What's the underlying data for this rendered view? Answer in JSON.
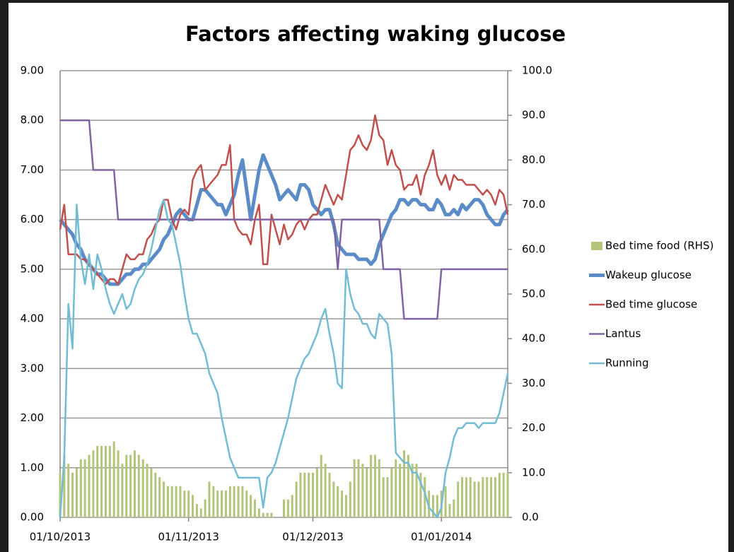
{
  "chart_data": {
    "type": "line",
    "title": "Factors affecting waking glucose",
    "categories": [
      "01/10/2013",
      null,
      null,
      null,
      null,
      null,
      null,
      null,
      null,
      null,
      null,
      null,
      null,
      null,
      null,
      null,
      null,
      null,
      null,
      null,
      null,
      null,
      null,
      null,
      null,
      null,
      null,
      null,
      null,
      null,
      null,
      "01/11/2013",
      null,
      null,
      null,
      null,
      null,
      null,
      null,
      null,
      null,
      null,
      null,
      null,
      null,
      null,
      null,
      null,
      null,
      null,
      null,
      null,
      null,
      null,
      null,
      null,
      null,
      null,
      null,
      null,
      null,
      "01/12/2013",
      null,
      null,
      null,
      null,
      null,
      null,
      null,
      null,
      null,
      null,
      null,
      null,
      null,
      null,
      null,
      null,
      null,
      null,
      null,
      null,
      null,
      null,
      null,
      null,
      null,
      null,
      null,
      null,
      null,
      null,
      "01/01/2014",
      null,
      null,
      null,
      null,
      null,
      null,
      null,
      null,
      null,
      null,
      null,
      null,
      null,
      null,
      null,
      null
    ],
    "ylim": [
      0,
      9
    ],
    "yticks": [
      {
        "value": 0,
        "label": "0.00"
      },
      {
        "value": 1,
        "label": "1.00"
      },
      {
        "value": 2,
        "label": "2.00"
      },
      {
        "value": 3,
        "label": "3.00"
      },
      {
        "value": 4,
        "label": "4.00"
      },
      {
        "value": 5,
        "label": "5.00"
      },
      {
        "value": 6,
        "label": "6.00"
      },
      {
        "value": 7,
        "label": "7.00"
      },
      {
        "value": 8,
        "label": "8.00"
      },
      {
        "value": 9,
        "label": "9.00"
      }
    ],
    "y2lim": [
      0,
      100
    ],
    "y2ticks": [
      {
        "value": 0,
        "label": "0.0"
      },
      {
        "value": 10,
        "label": "10.0"
      },
      {
        "value": 20,
        "label": "20.0"
      },
      {
        "value": 30,
        "label": "30.0"
      },
      {
        "value": 40,
        "label": "40.0"
      },
      {
        "value": 50,
        "label": "50.0"
      },
      {
        "value": 60,
        "label": "60.0"
      },
      {
        "value": 70,
        "label": "70.0"
      },
      {
        "value": 80,
        "label": "80.0"
      },
      {
        "value": 90,
        "label": "90.0"
      },
      {
        "value": 100,
        "label": "100.0"
      }
    ],
    "grid": true,
    "legend": "right",
    "series": [
      {
        "name": "Bed time food (RHS)",
        "type": "bar",
        "axis": "y2",
        "color": "#b3c57a",
        "values": [
          10,
          14,
          12,
          10,
          11,
          13,
          13,
          14,
          15,
          16,
          16,
          16,
          16,
          17,
          15,
          12,
          14,
          14,
          15,
          14,
          13,
          12,
          11,
          10,
          9,
          8,
          7,
          7,
          7,
          7,
          6,
          6,
          5,
          3,
          2,
          4,
          8,
          7,
          6,
          6,
          6,
          7,
          7,
          7,
          7,
          6,
          5,
          4,
          2,
          1,
          1,
          1,
          0,
          0,
          4,
          4,
          5,
          8,
          10,
          10,
          10,
          10,
          11,
          14,
          12,
          10,
          8,
          7,
          6,
          5,
          8,
          13,
          13,
          12,
          11,
          14,
          14,
          13,
          9,
          9,
          11,
          13,
          12,
          15,
          14,
          12,
          12,
          10,
          9,
          6,
          5,
          5,
          6,
          7,
          3,
          4,
          8,
          9,
          9,
          9,
          8,
          8,
          9,
          9,
          9,
          9,
          10,
          10,
          10
        ]
      },
      {
        "name": "Wakeup glucose",
        "color": "#5b8cc8",
        "values": [
          6.0,
          5.9,
          5.8,
          5.7,
          5.5,
          5.4,
          5.2,
          5.1,
          5.0,
          4.9,
          4.9,
          4.8,
          4.7,
          4.7,
          4.7,
          4.8,
          4.9,
          4.9,
          5.0,
          5.0,
          5.1,
          5.1,
          5.2,
          5.3,
          5.4,
          5.6,
          5.7,
          5.9,
          6.1,
          6.2,
          6.1,
          6.0,
          6.0,
          6.3,
          6.6,
          6.6,
          6.5,
          6.4,
          6.3,
          6.3,
          6.1,
          6.3,
          6.5,
          6.9,
          7.2,
          6.6,
          6.0,
          6.5,
          7.0,
          7.3,
          7.1,
          6.9,
          6.7,
          6.4,
          6.5,
          6.6,
          6.5,
          6.4,
          6.7,
          6.7,
          6.6,
          6.3,
          6.2,
          6.1,
          6.2,
          6.2,
          5.9,
          5.5,
          5.4,
          5.3,
          5.3,
          5.3,
          5.2,
          5.2,
          5.2,
          5.1,
          5.2,
          5.5,
          5.7,
          5.9,
          6.1,
          6.2,
          6.4,
          6.4,
          6.3,
          6.4,
          6.4,
          6.3,
          6.3,
          6.2,
          6.2,
          6.4,
          6.3,
          6.1,
          6.1,
          6.2,
          6.1,
          6.3,
          6.2,
          6.3,
          6.4,
          6.4,
          6.3,
          6.1,
          6.0,
          5.9,
          5.9,
          6.1,
          6.2
        ]
      },
      {
        "name": "Bed time glucose",
        "color": "#c0504d",
        "values": [
          5.8,
          6.3,
          5.3,
          5.3,
          5.3,
          5.2,
          5.2,
          5.1,
          5.0,
          4.9,
          4.8,
          4.7,
          4.8,
          4.8,
          4.7,
          5.0,
          5.3,
          5.2,
          5.2,
          5.3,
          5.3,
          5.6,
          5.7,
          5.9,
          6.0,
          6.4,
          6.4,
          6.0,
          5.8,
          6.1,
          6.2,
          6.1,
          6.8,
          7.0,
          7.1,
          6.6,
          6.7,
          6.8,
          6.9,
          7.1,
          7.1,
          7.5,
          6.0,
          5.8,
          5.7,
          5.7,
          5.5,
          6.0,
          6.3,
          5.1,
          5.1,
          6.1,
          5.8,
          5.5,
          5.9,
          5.6,
          5.7,
          5.9,
          6.0,
          5.8,
          6.0,
          6.1,
          6.1,
          6.4,
          6.7,
          6.5,
          6.3,
          6.5,
          6.4,
          6.9,
          7.4,
          7.5,
          7.7,
          7.5,
          7.4,
          7.6,
          8.1,
          7.7,
          7.6,
          7.1,
          7.4,
          7.1,
          7.0,
          6.6,
          6.7,
          6.7,
          6.9,
          6.5,
          6.9,
          7.1,
          7.4,
          6.9,
          6.7,
          6.9,
          6.6,
          6.9,
          6.8,
          6.8,
          6.7,
          6.7,
          6.7,
          6.6,
          6.5,
          6.6,
          6.5,
          6.3,
          6.6,
          6.5,
          6.1
        ]
      },
      {
        "name": "Lantus",
        "color": "#8064a2",
        "values": [
          8,
          8,
          8,
          8,
          8,
          8,
          8,
          8,
          7,
          7,
          7,
          7,
          7,
          7,
          6,
          6,
          6,
          6,
          6,
          6,
          6,
          6,
          6,
          6,
          6,
          6,
          6,
          6,
          6,
          6,
          6,
          6,
          6,
          6,
          6,
          6,
          6,
          6,
          6,
          6,
          6,
          6,
          6,
          6,
          6,
          6,
          6,
          6,
          6,
          6,
          6,
          6,
          6,
          6,
          6,
          6,
          6,
          6,
          6,
          6,
          6,
          6,
          6,
          6,
          6,
          6,
          6,
          5,
          6,
          6,
          6,
          6,
          6,
          6,
          6,
          6,
          6,
          6,
          5,
          5,
          5,
          5,
          5,
          4,
          4,
          4,
          4,
          4,
          4,
          4,
          4,
          4,
          5,
          5,
          5,
          5,
          5,
          5,
          5,
          5,
          5,
          5,
          5,
          5,
          5,
          5,
          5,
          5,
          5
        ]
      },
      {
        "name": "Running",
        "color": "#72bcd4",
        "values": [
          0.0,
          1.2,
          4.3,
          3.4,
          6.3,
          5.2,
          4.7,
          5.3,
          4.6,
          5.3,
          5.0,
          4.6,
          4.3,
          4.1,
          4.3,
          4.5,
          4.2,
          4.3,
          4.6,
          4.8,
          4.9,
          5.1,
          5.4,
          5.8,
          6.2,
          6.4,
          6.0,
          5.9,
          5.5,
          5.1,
          4.5,
          4.0,
          3.7,
          3.7,
          3.5,
          3.3,
          2.9,
          2.7,
          2.5,
          2.0,
          1.6,
          1.2,
          1.0,
          0.8,
          0.8,
          0.8,
          0.8,
          0.8,
          0.8,
          0.2,
          0.8,
          0.9,
          1.1,
          1.4,
          1.7,
          2.0,
          2.4,
          2.8,
          3.0,
          3.2,
          3.3,
          3.5,
          3.7,
          4.0,
          4.2,
          3.7,
          3.3,
          2.7,
          2.6,
          5.0,
          4.5,
          4.2,
          4.1,
          3.9,
          3.9,
          3.7,
          3.6,
          4.1,
          4.0,
          3.9,
          3.3,
          1.3,
          1.2,
          1.1,
          1.1,
          0.9,
          0.9,
          0.7,
          0.5,
          0.2,
          0.1,
          0.0,
          0.2,
          0.9,
          1.2,
          1.6,
          1.8,
          1.8,
          1.9,
          1.9,
          1.9,
          1.8,
          1.9,
          1.9,
          1.9,
          1.9,
          2.1,
          2.5,
          2.9
        ]
      }
    ]
  }
}
